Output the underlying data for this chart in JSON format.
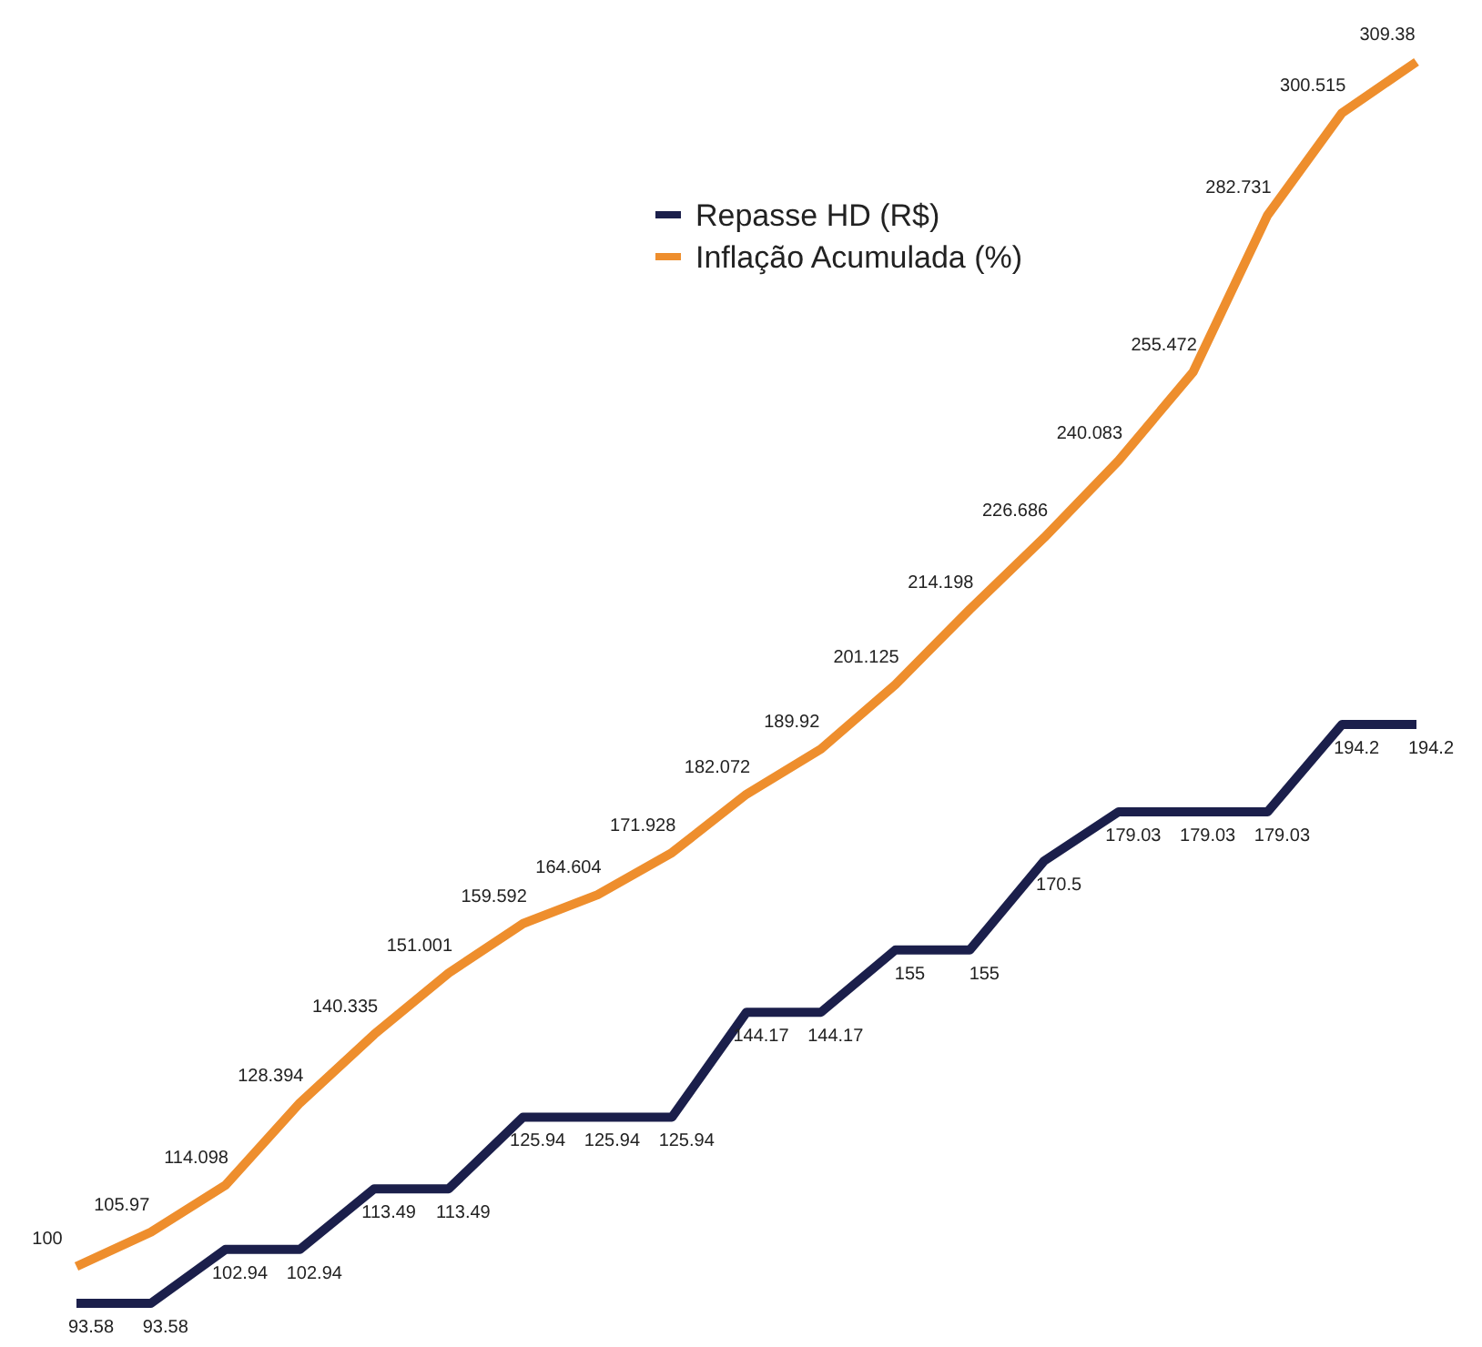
{
  "chart_data": {
    "type": "line",
    "categories": [
      null,
      null,
      null,
      null,
      null,
      null,
      null,
      null,
      null,
      null,
      null,
      null,
      null,
      null,
      null,
      null,
      null,
      null,
      null
    ],
    "series": [
      {
        "name": "Repasse HD (R$)",
        "color": "#1b1f4b",
        "values": [
          93.58,
          93.58,
          102.94,
          102.94,
          113.49,
          113.49,
          125.94,
          125.94,
          125.94,
          144.17,
          144.17,
          155,
          155,
          170.5,
          179.03,
          179.03,
          179.03,
          194.2,
          194.2
        ]
      },
      {
        "name": "Inflação Acumulada (%)",
        "color": "#ee8e2d",
        "values": [
          100,
          105.97,
          114.098,
          128.394,
          140.335,
          151.001,
          159.592,
          164.604,
          171.928,
          182.072,
          189.92,
          201.125,
          214.198,
          226.686,
          240.083,
          255.472,
          282.731,
          300.515,
          309.38
        ]
      }
    ],
    "data_labels": true,
    "legend": "top",
    "marker": "none",
    "line_style": "solid"
  }
}
